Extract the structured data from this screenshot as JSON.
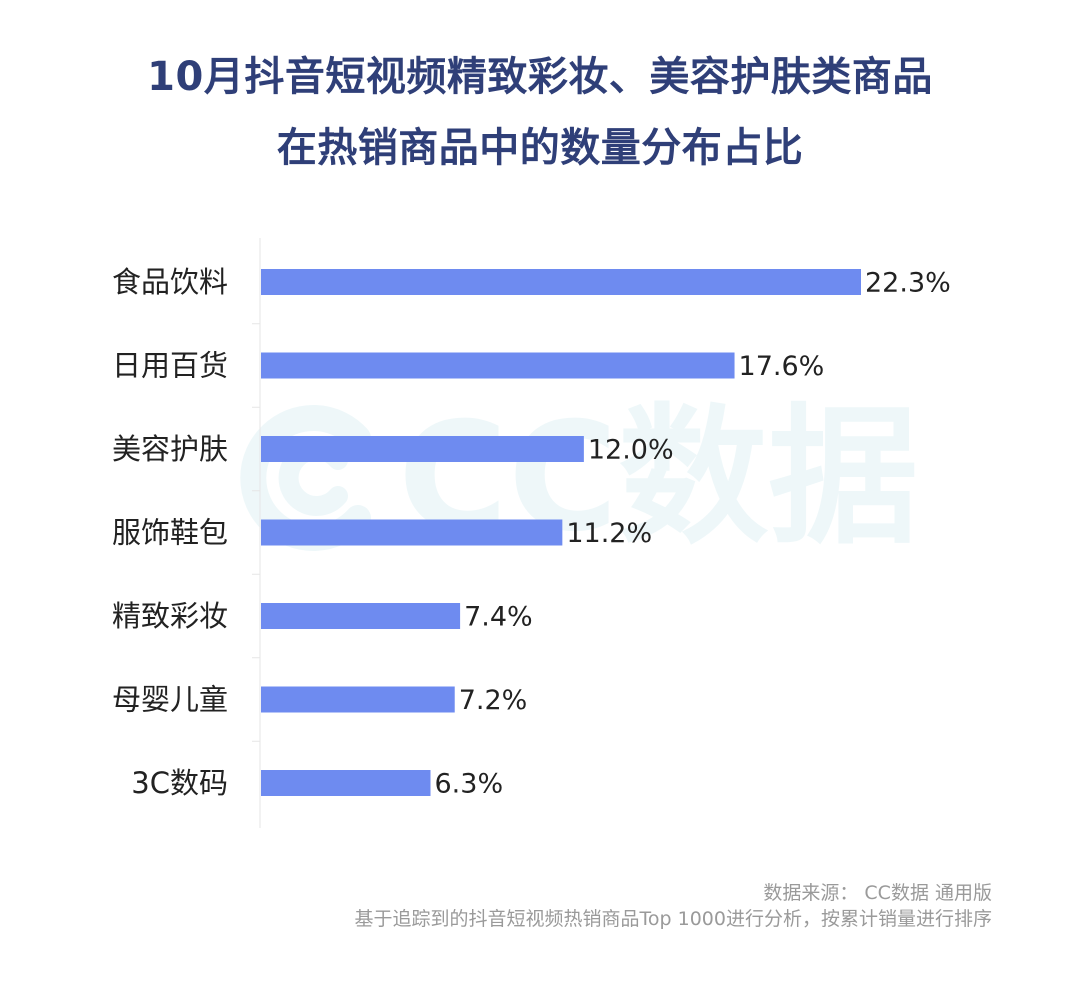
{
  "title_line1": "10月抖音短视频精致彩妆、美容护肤类商品",
  "title_line2": "在热销商品中的数量分布占比",
  "watermark": {
    "text": "CC数据",
    "icon": "cc-logo-icon"
  },
  "footer": {
    "source": "数据来源： CC数据 通用版",
    "note": "基于追踪到的抖音短视频热销商品Top 1000进行分析，按累计销量进行排序"
  },
  "colors": {
    "bar": "#6e8bf0",
    "title": "#2f3f78",
    "axis": "#e6e6e6",
    "label": "#222222",
    "footer": "#9a9a9a"
  },
  "chart_data": {
    "type": "bar",
    "orientation": "horizontal",
    "categories": [
      "食品饮料",
      "日用百货",
      "美容护肤",
      "服饰鞋包",
      "精致彩妆",
      "母婴儿童",
      "3C数码"
    ],
    "values": [
      22.3,
      17.6,
      12.0,
      11.2,
      7.4,
      7.2,
      6.3
    ],
    "value_labels": [
      "22.3%",
      "17.6%",
      "12.0%",
      "11.2%",
      "7.4%",
      "7.2%",
      "6.3%"
    ],
    "unit": "%",
    "title": "10月抖音短视频精致彩妆、美容护肤类商品在热销商品中的数量分布占比",
    "xlabel": "",
    "ylabel": "",
    "grid": false,
    "legend": "none"
  }
}
